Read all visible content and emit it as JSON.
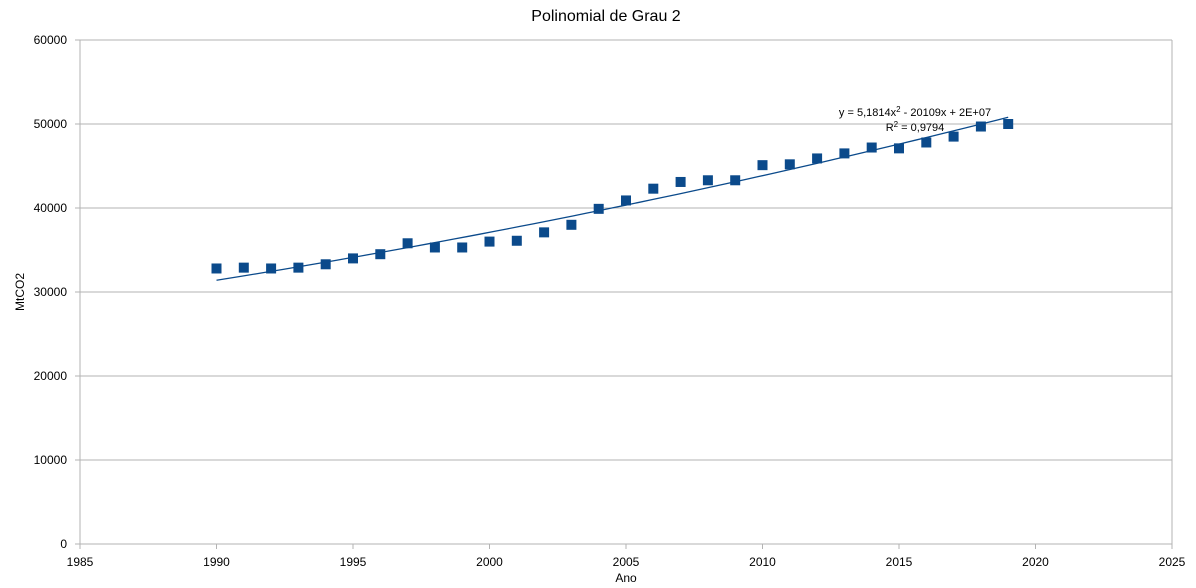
{
  "chart_data": {
    "type": "scatter",
    "title": "Polinomial de Grau 2",
    "xlabel": "Ano",
    "ylabel": "MtCO2",
    "xlim": [
      1985,
      2025
    ],
    "ylim": [
      0,
      60000
    ],
    "xticks": [
      1985,
      1990,
      1995,
      2000,
      2005,
      2010,
      2015,
      2020,
      2025
    ],
    "yticks": [
      0,
      10000,
      20000,
      30000,
      40000,
      50000,
      60000
    ],
    "grid": "horizontal",
    "legend": "none",
    "series": [
      {
        "color": "#0b4a8b",
        "marker": "square",
        "x": [
          1990,
          1991,
          1992,
          1993,
          1994,
          1995,
          1996,
          1997,
          1998,
          1999,
          2000,
          2001,
          2002,
          2003,
          2004,
          2005,
          2006,
          2007,
          2008,
          2009,
          2010,
          2011,
          2012,
          2013,
          2014,
          2015,
          2016,
          2017,
          2018,
          2019
        ],
        "y": [
          32800,
          32900,
          32800,
          32900,
          33300,
          34000,
          34500,
          35800,
          35300,
          35300,
          36000,
          36100,
          37100,
          38000,
          39900,
          40900,
          42300,
          43100,
          43300,
          43300,
          45100,
          45200,
          45900,
          46500,
          47200,
          47100,
          47800,
          48500,
          49700,
          50000
        ]
      }
    ],
    "trendline": {
      "type": "polynomial",
      "order": 2,
      "color": "#0b4a8b",
      "x_range": [
        1990,
        2019
      ],
      "y_range": [
        31400,
        50800
      ],
      "equation_prefix": "y = 5,1814x",
      "equation_sup": "2",
      "equation_suffix": " - 20109x + 2E+07",
      "r2_prefix": "R",
      "r2_sup": "2",
      "r2_suffix": " = 0,9794"
    }
  }
}
